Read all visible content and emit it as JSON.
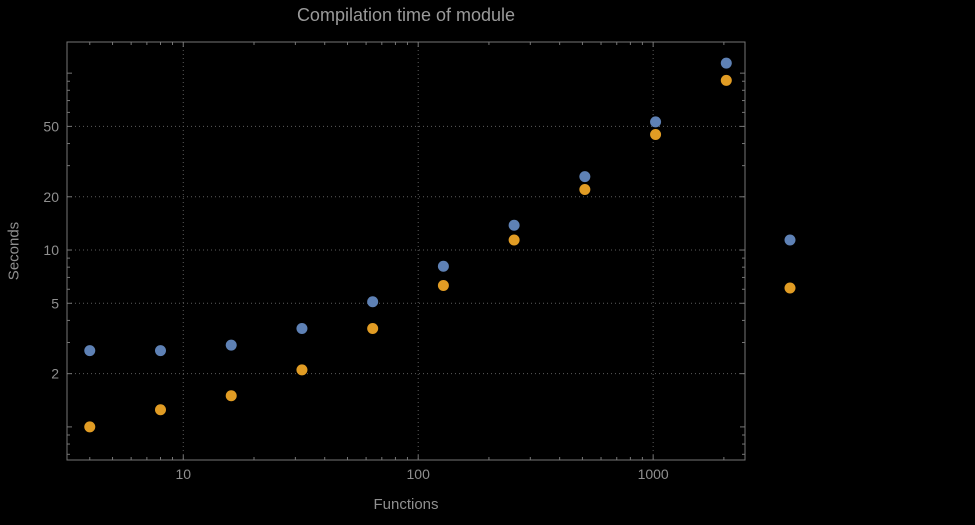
{
  "chart_data": {
    "type": "scatter",
    "title": "Compilation time of module",
    "xlabel": "Functions",
    "ylabel": "Seconds",
    "x_scale": "log",
    "y_scale": "log",
    "grid": "dotted",
    "legend_position": "right-outside",
    "xlim": [
      3.2,
      2460
    ],
    "ylim": [
      0.65,
      150
    ],
    "x_ticks": [
      10,
      100,
      1000
    ],
    "y_ticks": [
      2,
      5,
      10,
      20,
      50
    ],
    "x": [
      4,
      8,
      16,
      32,
      64,
      128,
      256,
      512,
      1024,
      2048
    ],
    "series": [
      {
        "name": "series-blue",
        "color": "#5E81B5",
        "values": [
          2.7,
          2.7,
          2.9,
          3.6,
          5.1,
          8.1,
          13.8,
          26,
          53,
          114
        ]
      },
      {
        "name": "series-orange",
        "color": "#E19C24",
        "values": [
          1.0,
          1.25,
          1.5,
          2.1,
          3.6,
          6.3,
          11.4,
          22,
          45,
          91
        ]
      }
    ],
    "legend_markers": [
      {
        "name": "legend-marker-blue",
        "color": "#5E81B5"
      },
      {
        "name": "legend-marker-orange",
        "color": "#E19C24"
      }
    ],
    "frame_color": "#767676",
    "grid_color": "#5c5c5c",
    "text_color": "#8f8f8f"
  }
}
